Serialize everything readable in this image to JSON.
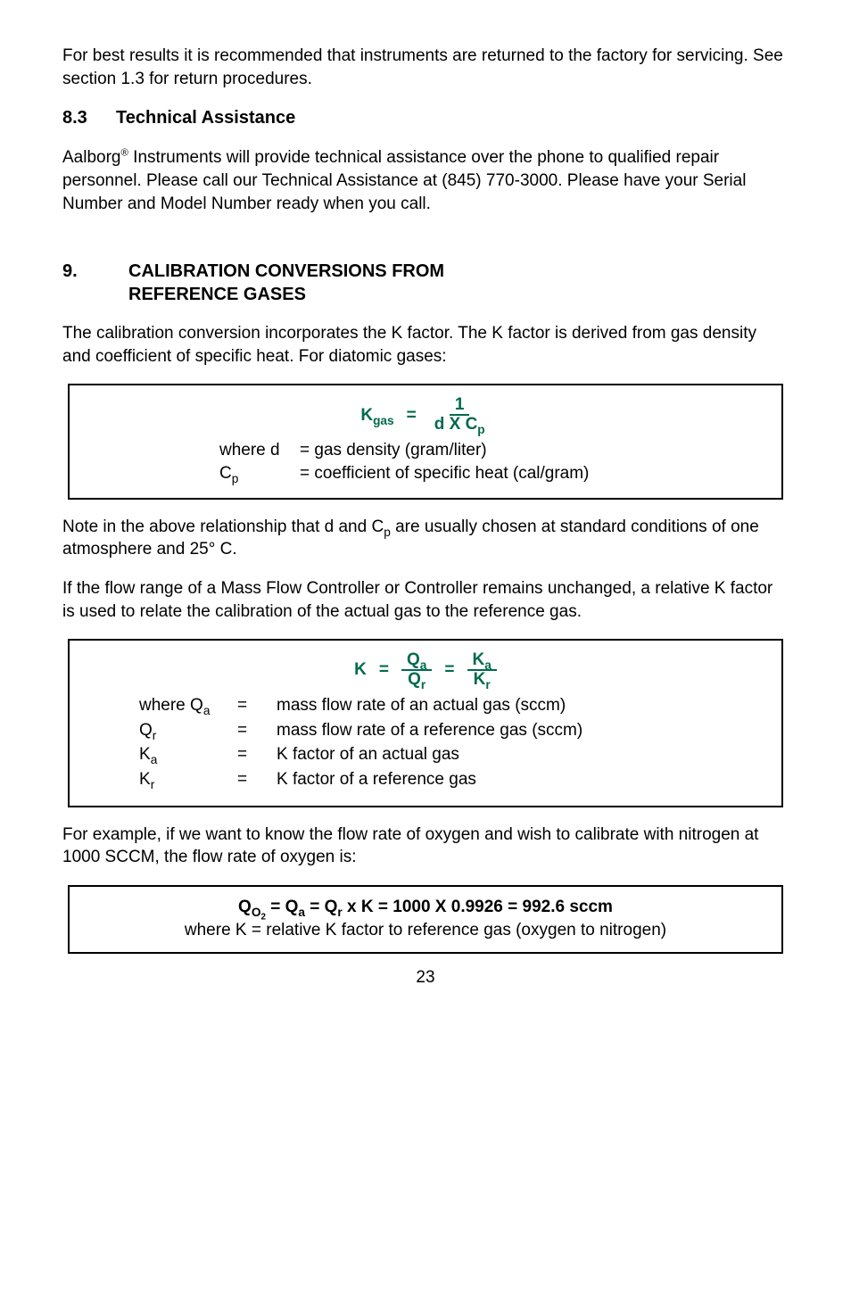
{
  "intro_para": "For best results it is recommended that instruments are returned to the factory for servicing. See section 1.3 for return procedures.",
  "sec83": {
    "num": "8.3",
    "title": "Technical Assistance"
  },
  "para_83a": "Aalborg",
  "para_83b": " Instruments will provide technical assistance over the phone to qualified repair personnel. Please call our Technical Assistance at (845) 770-3000. Please have your Serial Number and Model Number ready when you call.",
  "sec9": {
    "num": "9.",
    "title1": "CALIBRATION CONVERSIONS FROM",
    "title2": "REFERENCE GASES"
  },
  "para_9a": "The calibration conversion incorporates the K factor. The K factor is derived from gas density and coefficient of specific heat. For diatomic gases:",
  "formula1": {
    "lhs": "K",
    "lhs_sub": "gas",
    "num": "1",
    "den": "d  X C",
    "den_sub": "p",
    "where_d_var": "where d",
    "where_d_def": "= gas density (gram/liter)",
    "where_c_var": "C",
    "where_c_sub": "p",
    "where_c_def": "= coefficient of specific heat (cal/gram)"
  },
  "para_9b_a": "Note in the above relationship that d and C",
  "para_9b_sub": "p",
  "para_9b_b": " are usually chosen at standard conditions of one atmosphere and 25° C.",
  "para_9c": "If the flow range of a Mass Flow Controller or Controller remains unchanged, a relative K factor is used to relate the calibration of the actual gas to the reference gas.",
  "formula2": {
    "K": "K",
    "Qa": "Q",
    "Qa_sub": "a",
    "Qr": "Q",
    "Qr_sub": "r",
    "Ka": "K",
    "Ka_sub": "a",
    "Kr": "K",
    "Kr_sub": "r",
    "rows": [
      {
        "var": "where Q",
        "var_sub": "a",
        "eq": "=",
        "def": "mass flow rate of an actual gas (sccm)"
      },
      {
        "var": "Q",
        "var_sub": "r",
        "eq": "=",
        "def": "mass flow rate of a reference gas (sccm)"
      },
      {
        "var": "K",
        "var_sub": "a",
        "eq": "=",
        "def": "K factor of an actual gas"
      },
      {
        "var": "K",
        "var_sub": "r",
        "eq": "=",
        "def": "K factor of a reference gas"
      }
    ]
  },
  "para_9d": "For example, if we want to know the flow rate of oxygen and wish to calibrate with nitrogen at 1000 SCCM, the flow rate of oxygen is:",
  "formula3": {
    "line1_a": "Q",
    "line1_a_sub": "O",
    "line1_a_subsub": "2",
    "line1_b": " =  Q",
    "line1_b_sub": "a",
    "line1_c": "  =  Q",
    "line1_c_sub": "r",
    "line1_d": "  x  K = 1000  X  0.9926  =  992.6  sccm",
    "line2": "where K = relative K factor to reference gas (oxygen to nitrogen)"
  },
  "page": "23",
  "reg": "®"
}
